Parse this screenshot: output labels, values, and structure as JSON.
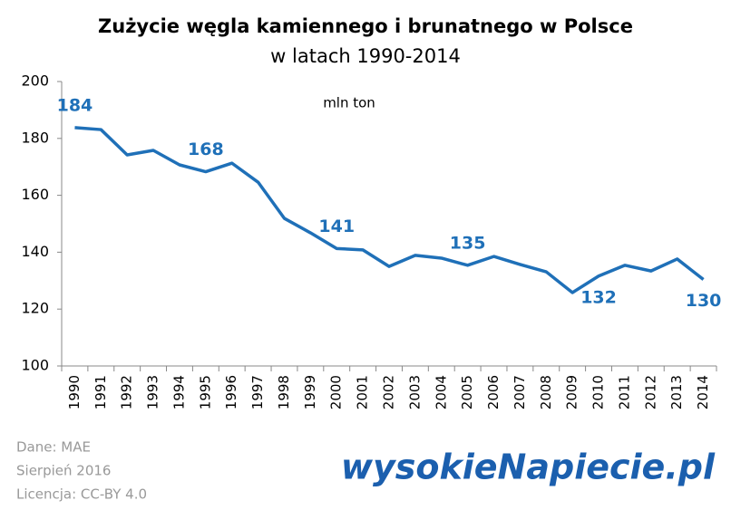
{
  "chart_data": {
    "type": "line",
    "title": "Zużycie węgla kamiennego i brunatnego  w Polsce",
    "subtitle": "w latach 1990-2014",
    "annotation": "mln ton",
    "categories": [
      "1990",
      "1991",
      "1992",
      "1993",
      "1994",
      "1995",
      "1996",
      "1997",
      "1998",
      "1999",
      "2000",
      "2001",
      "2002",
      "2003",
      "2004",
      "2005",
      "2006",
      "2007",
      "2008",
      "2009",
      "2010",
      "2011",
      "2012",
      "2013",
      "2014"
    ],
    "values": [
      183.8,
      183.1,
      174.2,
      175.8,
      170.7,
      168.3,
      171.3,
      164.6,
      151.9,
      146.8,
      141.3,
      140.8,
      135.0,
      138.9,
      137.9,
      135.4,
      138.5,
      135.7,
      133.1,
      125.8,
      131.6,
      135.4,
      133.4,
      137.6,
      130.4
    ],
    "value_labels": [
      "184",
      null,
      null,
      null,
      null,
      "168",
      null,
      null,
      null,
      null,
      "141",
      null,
      null,
      null,
      null,
      "135",
      null,
      null,
      null,
      null,
      "132",
      null,
      null,
      null,
      "130"
    ],
    "color": "#1f70b8",
    "ylim": [
      100,
      200
    ],
    "yticks": [
      100,
      120,
      140,
      160,
      180,
      200
    ],
    "grid": false,
    "notes": [
      "Dane: MAE",
      "Sierpień 2016",
      "Licencja: CC-BY 4.0"
    ],
    "logo": "wysokieNapiecie.pl"
  }
}
